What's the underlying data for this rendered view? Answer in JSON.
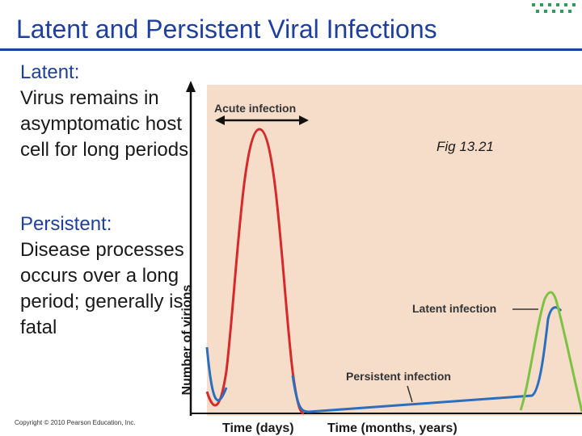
{
  "title": "Latent and Persistent Viral Infections",
  "latent_heading": "Latent:",
  "latent_text": "Virus remains in asymptomatic host cell for long periods",
  "persistent_heading": "Persistent:",
  "persistent_text": "Disease processes occurs over a long period; generally is fatal",
  "figure": {
    "fig_ref": "Fig 13.21",
    "y_axis_label": "Number of virions",
    "x_axis_label_1": "Time (days)",
    "x_axis_label_2": "Time (months, years)",
    "annotations": {
      "acute": "Acute infection",
      "latent": "Latent infection",
      "persistent": "Persistent infection"
    },
    "colors": {
      "acute": "#d62a2a",
      "latent": "#7dc242",
      "persistent": "#2a6fbf",
      "panel_bg": "#f6ddca"
    }
  },
  "copyright": "Copyright © 2010 Pearson Education, Inc.",
  "colors": {
    "title": "#1f3f9e",
    "accent_dots": "#2aa05a"
  }
}
